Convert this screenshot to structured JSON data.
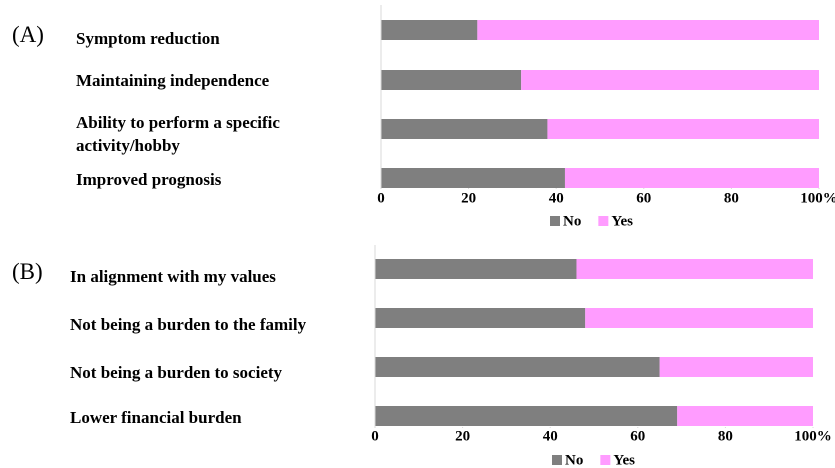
{
  "chart_data": [
    {
      "type": "bar",
      "orientation": "horizontal",
      "stacked": true,
      "panel_label": "(A)",
      "categories": [
        "Symptom reduction",
        "Maintaining independence",
        "Ability to perform a specific activity/hobby",
        "Improved prognosis"
      ],
      "series": [
        {
          "name": "No",
          "color": "#7f7f7f",
          "values": [
            22,
            32,
            38,
            42
          ]
        },
        {
          "name": "Yes",
          "color": "#ff9cff",
          "values": [
            78,
            68,
            62,
            58
          ]
        }
      ],
      "xlim": [
        0,
        100
      ],
      "xticks": [
        0,
        20,
        40,
        60,
        80,
        {
          "value": 100,
          "label": "100%"
        }
      ],
      "legend": "bottom"
    },
    {
      "type": "bar",
      "orientation": "horizontal",
      "stacked": true,
      "panel_label": "(B)",
      "categories": [
        "In alignment with my values",
        "Not being a burden to the family",
        "Not being a burden to society",
        "Lower financial burden"
      ],
      "series": [
        {
          "name": "No",
          "color": "#7f7f7f",
          "values": [
            46,
            48,
            65,
            69
          ]
        },
        {
          "name": "Yes",
          "color": "#ff9cff",
          "values": [
            54,
            52,
            35,
            31
          ]
        }
      ],
      "xlim": [
        0,
        100
      ],
      "xticks": [
        0,
        20,
        40,
        60,
        80,
        {
          "value": 100,
          "label": "100%"
        }
      ],
      "legend": "bottom"
    }
  ]
}
